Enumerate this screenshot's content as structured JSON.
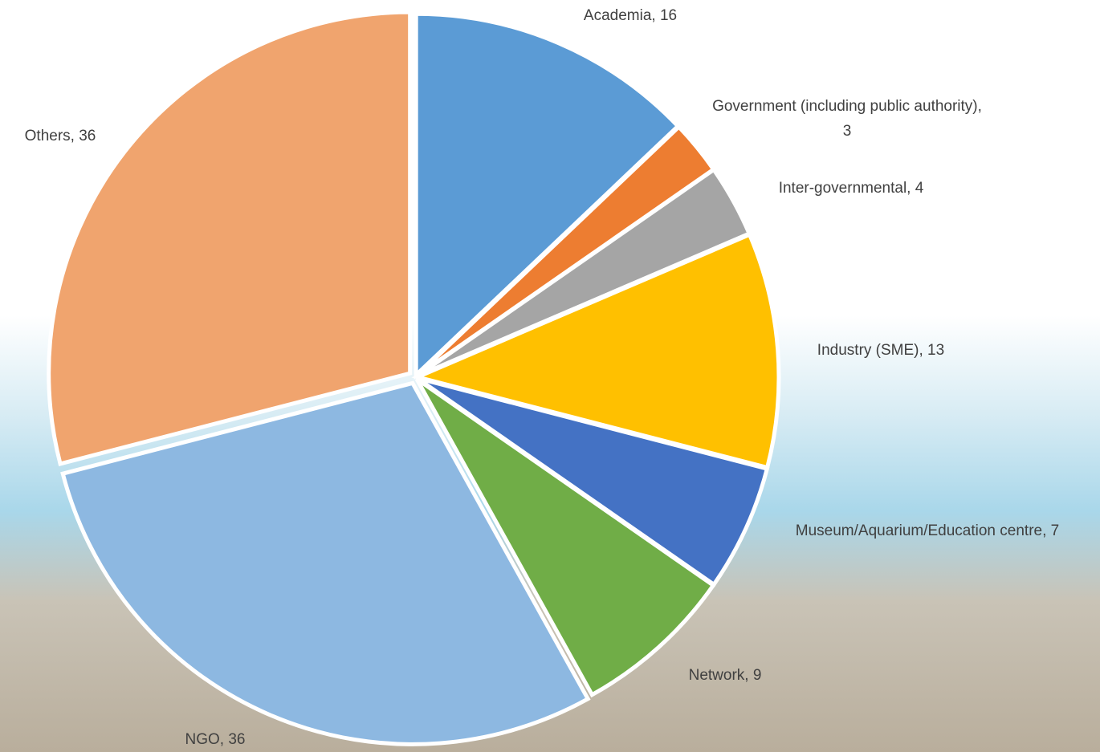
{
  "chart_data": {
    "type": "pie",
    "values": [
      16,
      3,
      4,
      13,
      7,
      9,
      36,
      36
    ],
    "value_labels": [
      "Academia, 16",
      "Government (including public authority), 3",
      "Inter-governmental, 4",
      "Industry (SME), 13",
      "Museum/Aquarium/Education centre, 7",
      "Network, 9",
      "NGO, 36",
      "Others, 36"
    ],
    "colors": [
      "#5b9bd5",
      "#ed7d31",
      "#a5a5a5",
      "#ffc000",
      "#4472c4",
      "#70ad47",
      "#8db8e1",
      "#f0a46e"
    ]
  }
}
